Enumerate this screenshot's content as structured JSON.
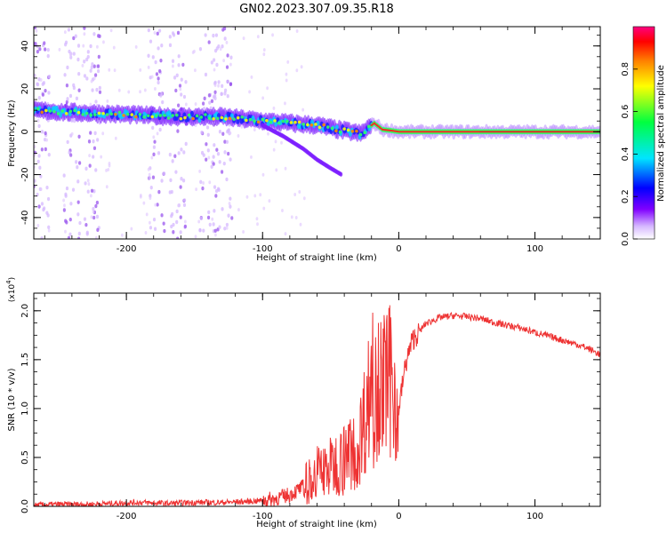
{
  "title": "GN02.2023.307.09.35.R18",
  "chart_data": [
    {
      "type": "heatmap",
      "xlabel": "Height of straight line (km)",
      "ylabel": "Frequency (Hz)",
      "xlim": [
        -268,
        148
      ],
      "ylim": [
        -50,
        49
      ],
      "x_ticks": [
        -200,
        -100,
        0,
        100
      ],
      "x_tick_labels": [
        "-200",
        "-100",
        "0",
        "100"
      ],
      "y_ticks": [
        -40,
        -20,
        0,
        20,
        40
      ],
      "y_tick_labels": [
        "-40",
        "-20",
        "0",
        "20",
        "40"
      ],
      "ridge": {
        "x": [
          -268,
          -240,
          -200,
          -160,
          -130,
          -100,
          -80,
          -60,
          -45,
          -35,
          -28,
          -22,
          -18,
          -12,
          -5,
          0,
          50,
          100,
          148
        ],
        "y": [
          10,
          9,
          8,
          7,
          7,
          5,
          4,
          3,
          1,
          0,
          -1,
          2,
          4,
          1,
          0.5,
          0,
          0,
          0,
          0
        ]
      },
      "branch": {
        "x": [
          -100,
          -85,
          -70,
          -60,
          -50,
          -42
        ],
        "y": [
          3,
          -2,
          -8,
          -13,
          -17,
          -20
        ]
      },
      "colorbar": {
        "label": "Normalized spectral amplitude",
        "range": [
          0,
          1
        ],
        "ticks": [
          0.0,
          0.2,
          0.4,
          0.6,
          0.8
        ],
        "tick_labels": [
          "0.0",
          "0.2",
          "0.4",
          "0.6",
          "0.8"
        ],
        "colors": [
          "#ffffff",
          "#d6b8ff",
          "#8000ff",
          "#0000ff",
          "#00e5ff",
          "#00ff40",
          "#ffff00",
          "#ff7f00",
          "#ff0000",
          "#ff0080"
        ]
      }
    },
    {
      "type": "line",
      "xlabel": "Height of straight line (km)",
      "ylabel": "SNR (10 * v/v)",
      "y_multiplier": "(x10",
      "y_multiplier_exp": "4",
      "y_multiplier_close": ")",
      "xlim": [
        -268,
        148
      ],
      "ylim": [
        0,
        2.18
      ],
      "x_ticks": [
        -200,
        -100,
        0,
        100
      ],
      "x_tick_labels": [
        "-200",
        "-100",
        "0",
        "100"
      ],
      "y_ticks": [
        0.0,
        0.5,
        1.0,
        1.5,
        2.0
      ],
      "y_tick_labels": [
        "0.0",
        "0.5",
        "1.0",
        "1.5",
        "2.0"
      ],
      "series": [
        {
          "color": "#ee3333",
          "x": [
            -268,
            -250,
            -230,
            -210,
            -190,
            -170,
            -150,
            -130,
            -110,
            -100,
            -90,
            -80,
            -70,
            -60,
            -50,
            -40,
            -30,
            -22,
            -18,
            -12,
            -5,
            0,
            5,
            10,
            20,
            30,
            40,
            50,
            60,
            70,
            80,
            90,
            100,
            110,
            120,
            130,
            140,
            148
          ],
          "y": [
            0.01,
            0.02,
            0.02,
            0.03,
            0.04,
            0.03,
            0.04,
            0.04,
            0.05,
            0.06,
            0.08,
            0.12,
            0.2,
            0.35,
            0.4,
            0.5,
            0.6,
            1.1,
            1.6,
            1.2,
            1.3,
            1.0,
            1.45,
            1.7,
            1.87,
            1.93,
            1.95,
            1.94,
            1.92,
            1.88,
            1.85,
            1.82,
            1.78,
            1.74,
            1.7,
            1.66,
            1.61,
            1.55
          ]
        }
      ]
    }
  ]
}
